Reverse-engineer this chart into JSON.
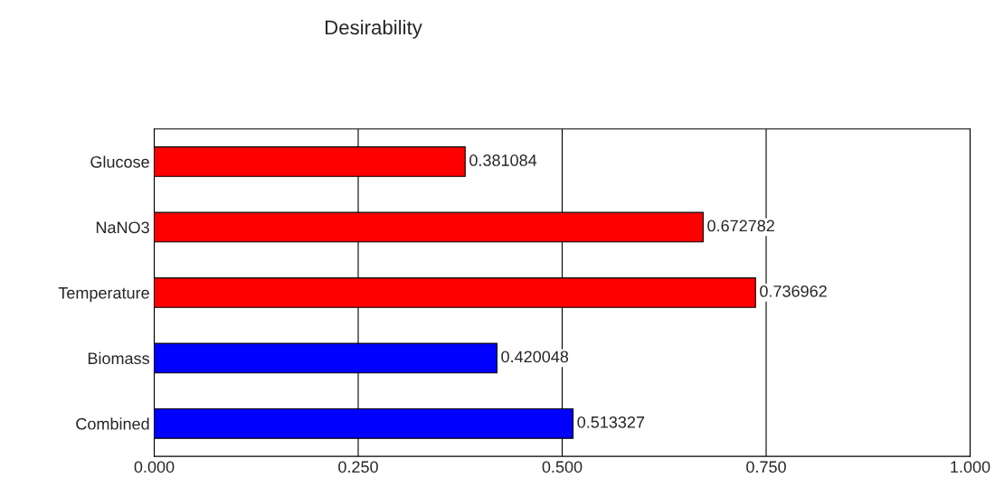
{
  "chart_data": {
    "type": "bar",
    "orientation": "horizontal",
    "title": "Desirability",
    "categories": [
      "Glucose",
      "NaNO3",
      "Temperature",
      "Biomass",
      "Combined"
    ],
    "values": [
      0.381084,
      0.672782,
      0.736962,
      0.420048,
      0.513327
    ],
    "colors": [
      "#ff0000",
      "#ff0000",
      "#ff0000",
      "#0000ff",
      "#0000ff"
    ],
    "xlim": [
      0,
      1
    ],
    "xticks": [
      {
        "value": 0,
        "label": "0.000"
      },
      {
        "value": 0.25,
        "label": "0.250"
      },
      {
        "value": 0.5,
        "label": "0.500"
      },
      {
        "value": 0.75,
        "label": "0.750"
      },
      {
        "value": 1,
        "label": "1.000"
      }
    ],
    "grid": "x",
    "data_labels": true
  }
}
